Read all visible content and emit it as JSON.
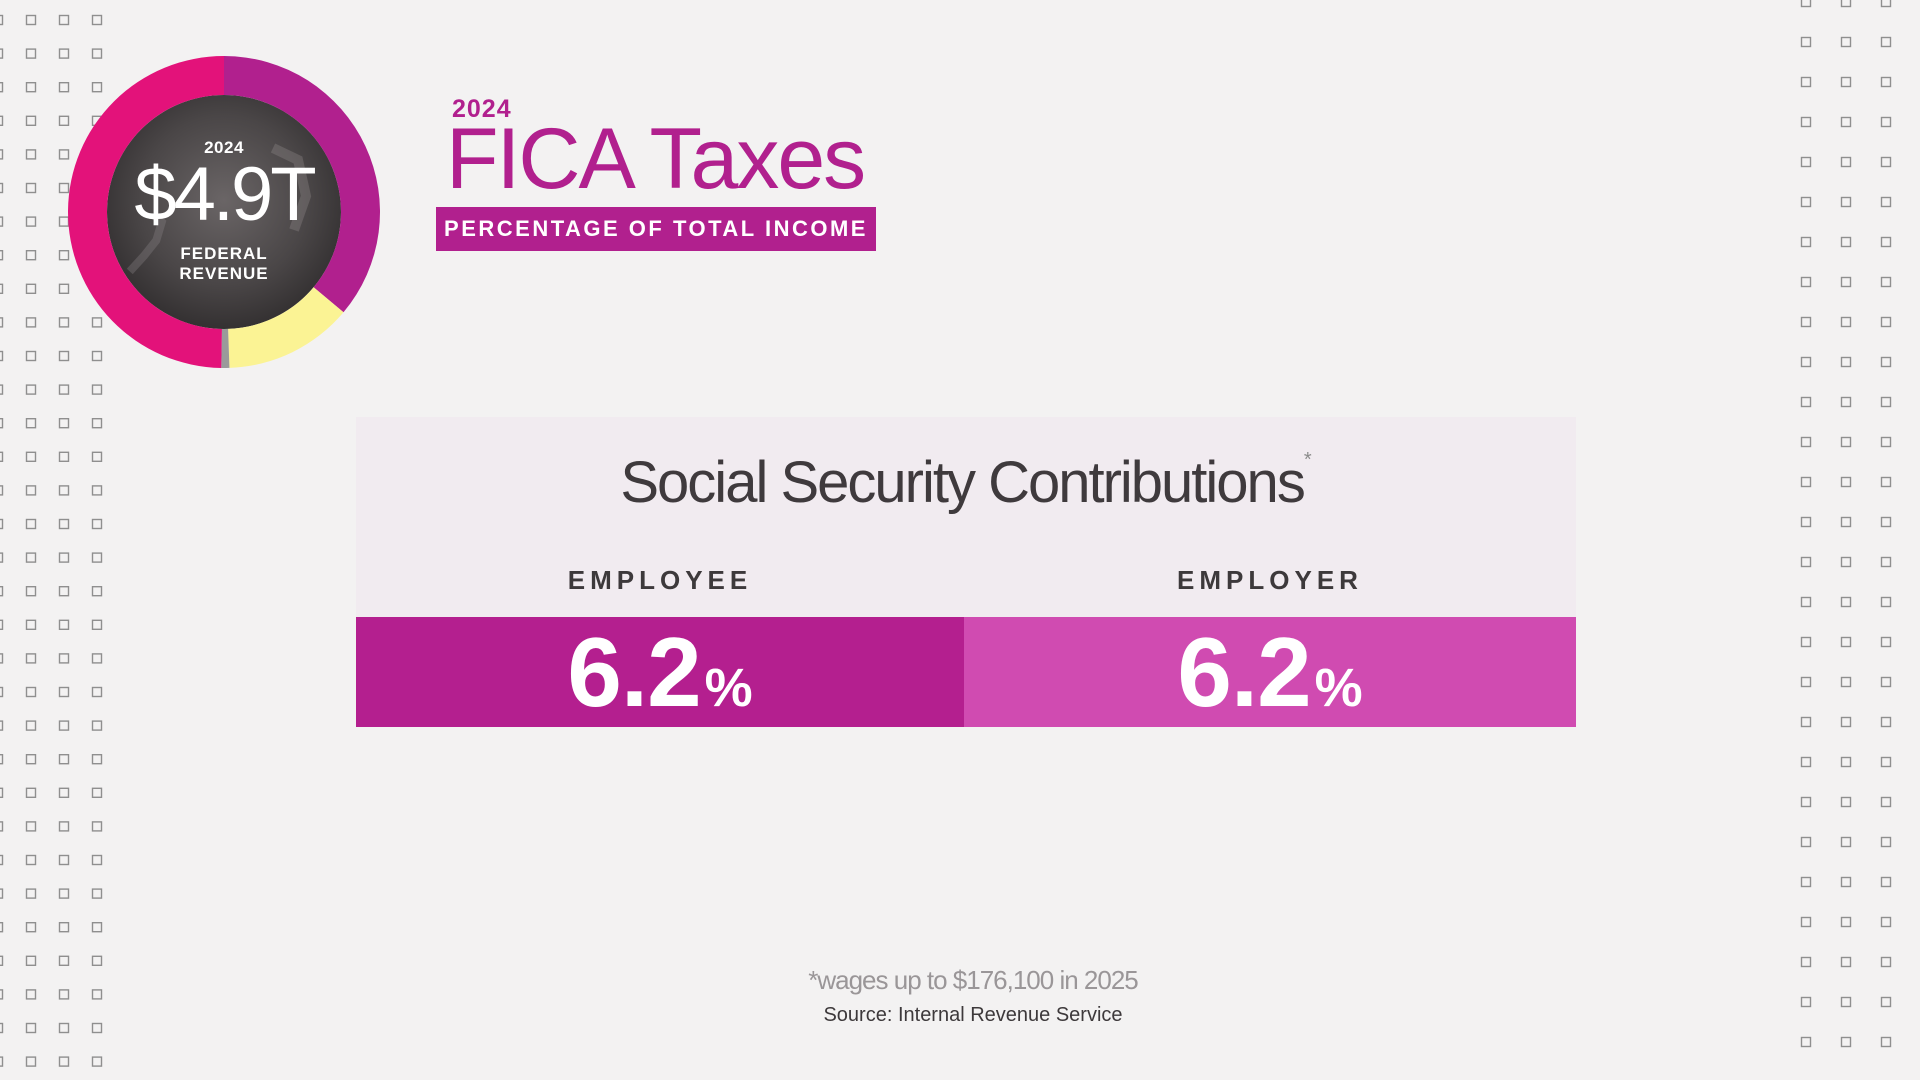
{
  "donut": {
    "year": "2024",
    "amount": "$4.9T",
    "label_line1": "FEDERAL",
    "label_line2": "REVENUE"
  },
  "header": {
    "year": "2024",
    "title": "FICA Taxes",
    "subtitle": "PERCENTAGE OF TOTAL INCOME"
  },
  "panel": {
    "title": "Social Security Contributions",
    "title_marker": "*",
    "employee": {
      "label": "EMPLOYEE",
      "value": "6.2",
      "unit": "%"
    },
    "employer": {
      "label": "EMPLOYER",
      "value": "6.2",
      "unit": "%"
    }
  },
  "footer": {
    "note": "*wages up to $176,100 in 2025",
    "source": "Source: Internal Revenue Service"
  },
  "colors": {
    "magenta": "#b1208e",
    "magenta_light": "#d04bb1",
    "pink": "#e3127a",
    "yellow": "#fbf394",
    "background": "#f3f2f2"
  }
}
